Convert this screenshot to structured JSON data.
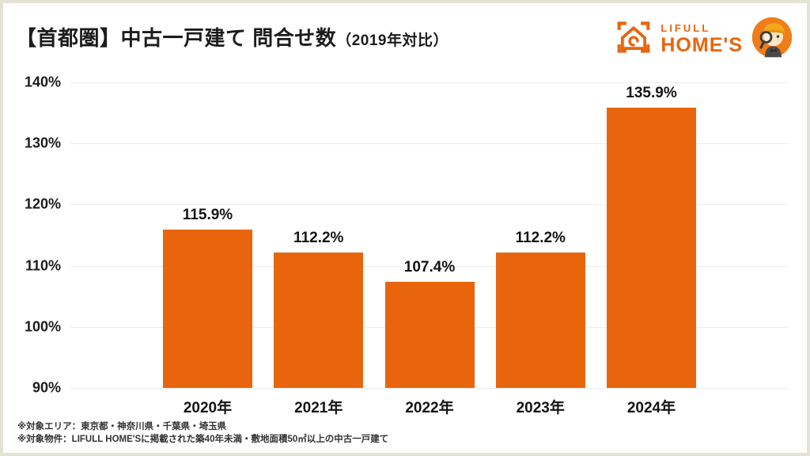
{
  "header": {
    "title_main": "【首都圏】中古一戸建て 問合せ数",
    "title_sub": "（2019年対比）"
  },
  "logo": {
    "brand_top": "LIFULL",
    "brand_bottom": "HOME'S",
    "brand_color": "#e8650e"
  },
  "chart_data": {
    "type": "bar",
    "title": "【首都圏】中古一戸建て 問合せ数（2019年対比）",
    "categories": [
      "2020年",
      "2021年",
      "2022年",
      "2023年",
      "2024年"
    ],
    "values": [
      115.9,
      112.2,
      107.4,
      112.2,
      135.9
    ],
    "value_labels": [
      "115.9%",
      "112.2%",
      "107.4%",
      "112.2%",
      "135.9%"
    ],
    "ylim": [
      90,
      140
    ],
    "ytick_interval": 10,
    "yticks": [
      "140%",
      "130%",
      "120%",
      "110%",
      "100%",
      "90%"
    ],
    "grid": true,
    "legend": "none",
    "bar_color": "#e8650e"
  },
  "footnotes": [
    "※対象エリア：東京都・神奈川県・千葉県・埼玉県",
    "※対象物件：LIFULL HOME'Sに掲載された築40年未満・敷地面積50㎡以上の中古一戸建て"
  ]
}
